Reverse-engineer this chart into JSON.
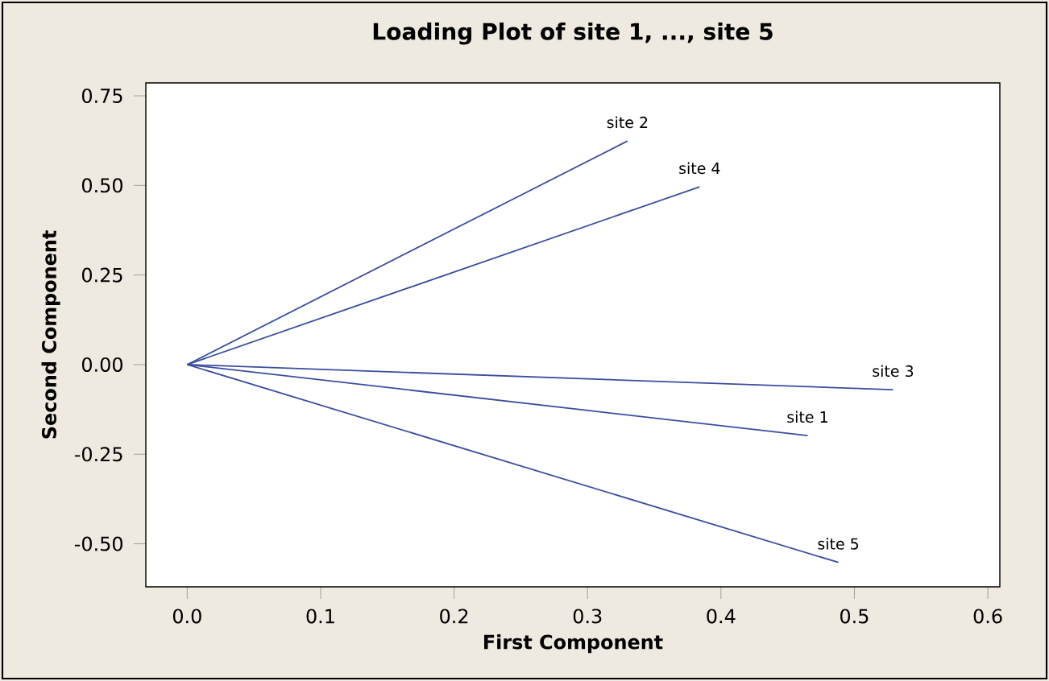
{
  "chart_data": {
    "type": "line",
    "title": "Loading Plot of site 1, ..., site 5",
    "xlabel": "First Component",
    "ylabel": "Second Component",
    "xlim": [
      -0.031,
      0.609
    ],
    "ylim": [
      -0.62,
      0.786
    ],
    "xticks": [
      {
        "value": 0,
        "label": "0.0"
      },
      {
        "value": 0.1,
        "label": "0.1"
      },
      {
        "value": 0.2,
        "label": "0.2"
      },
      {
        "value": 0.3,
        "label": "0.3"
      },
      {
        "value": 0.4,
        "label": "0.4"
      },
      {
        "value": 0.5,
        "label": "0.5"
      },
      {
        "value": 0.6,
        "label": "0.6"
      }
    ],
    "yticks": [
      {
        "value": -0.5,
        "label": "-0.50"
      },
      {
        "value": -0.25,
        "label": "-0.25"
      },
      {
        "value": 0,
        "label": "0.00"
      },
      {
        "value": 0.25,
        "label": "0.25"
      },
      {
        "value": 0.5,
        "label": "0.50"
      },
      {
        "value": 0.75,
        "label": "0.75"
      }
    ],
    "series": [
      {
        "name": "site 1",
        "color": "#3a4da0",
        "x": [
          0,
          0.465
        ],
        "values": [
          0,
          -0.198
        ]
      },
      {
        "name": "site 2",
        "color": "#3a4da0",
        "x": [
          0,
          0.33
        ],
        "values": [
          0,
          0.624
        ]
      },
      {
        "name": "site 3",
        "color": "#3a4da0",
        "x": [
          0,
          0.529
        ],
        "values": [
          0,
          -0.07
        ]
      },
      {
        "name": "site 4",
        "color": "#3a4da0",
        "x": [
          0,
          0.384
        ],
        "values": [
          0,
          0.496
        ]
      },
      {
        "name": "site 5",
        "color": "#3a4da0",
        "x": [
          0,
          0.488
        ],
        "values": [
          0,
          -0.552
        ]
      }
    ]
  }
}
